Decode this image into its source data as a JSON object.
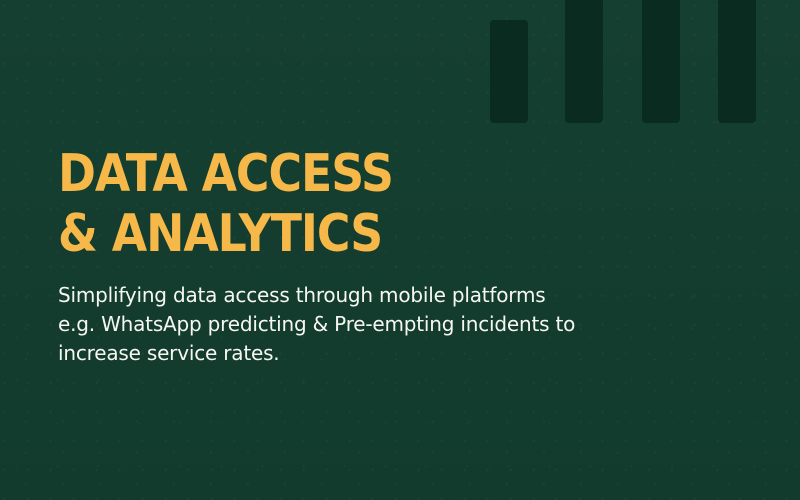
{
  "hero": {
    "headline_line_1": "DATA ACCESS",
    "headline_line_2": "& ANALYTICS",
    "description": "Simplifying data access through mobile platforms e.g. WhatsApp predicting & Pre-empting incidents to increase service rates."
  },
  "colors": {
    "background": "#123d2e",
    "decorative_bars": "#0a2b20",
    "headline": "#f6b848",
    "body_text": "#f7f7f2"
  }
}
